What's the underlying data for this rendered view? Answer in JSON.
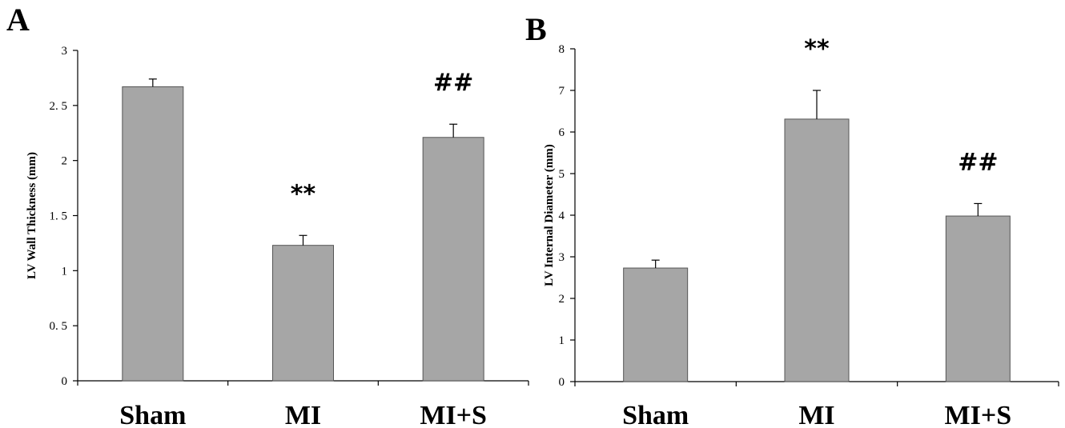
{
  "chart_data": [
    {
      "panel": "A",
      "type": "bar",
      "ylabel": "LV Wall Thickness (mm)",
      "ylim": [
        0,
        3
      ],
      "yticks": [
        0,
        0.5,
        1,
        1.5,
        2,
        2.5,
        3
      ],
      "ytick_labels": [
        "0",
        "0. 5",
        "1",
        "1. 5",
        "2",
        "2. 5",
        "3"
      ],
      "categories": [
        "Sham",
        "MI",
        "MI+S"
      ],
      "values": [
        2.67,
        1.23,
        2.21
      ],
      "errors": [
        0.07,
        0.09,
        0.12
      ],
      "annotations": [
        "",
        "**",
        "##"
      ],
      "bar_color": "#a6a6a6"
    },
    {
      "panel": "B",
      "type": "bar",
      "ylabel": "LV Internal Diameter (mm)",
      "ylim": [
        0,
        8
      ],
      "yticks": [
        0,
        1,
        2,
        3,
        4,
        5,
        6,
        7,
        8
      ],
      "ytick_labels": [
        "0",
        "1",
        "2",
        "3",
        "4",
        "5",
        "6",
        "7",
        "8"
      ],
      "categories": [
        "Sham",
        "MI",
        "MI+S"
      ],
      "values": [
        2.73,
        6.31,
        3.98
      ],
      "errors": [
        0.19,
        0.69,
        0.3
      ],
      "annotations": [
        "",
        "**",
        "##"
      ],
      "bar_color": "#a6a6a6"
    }
  ]
}
